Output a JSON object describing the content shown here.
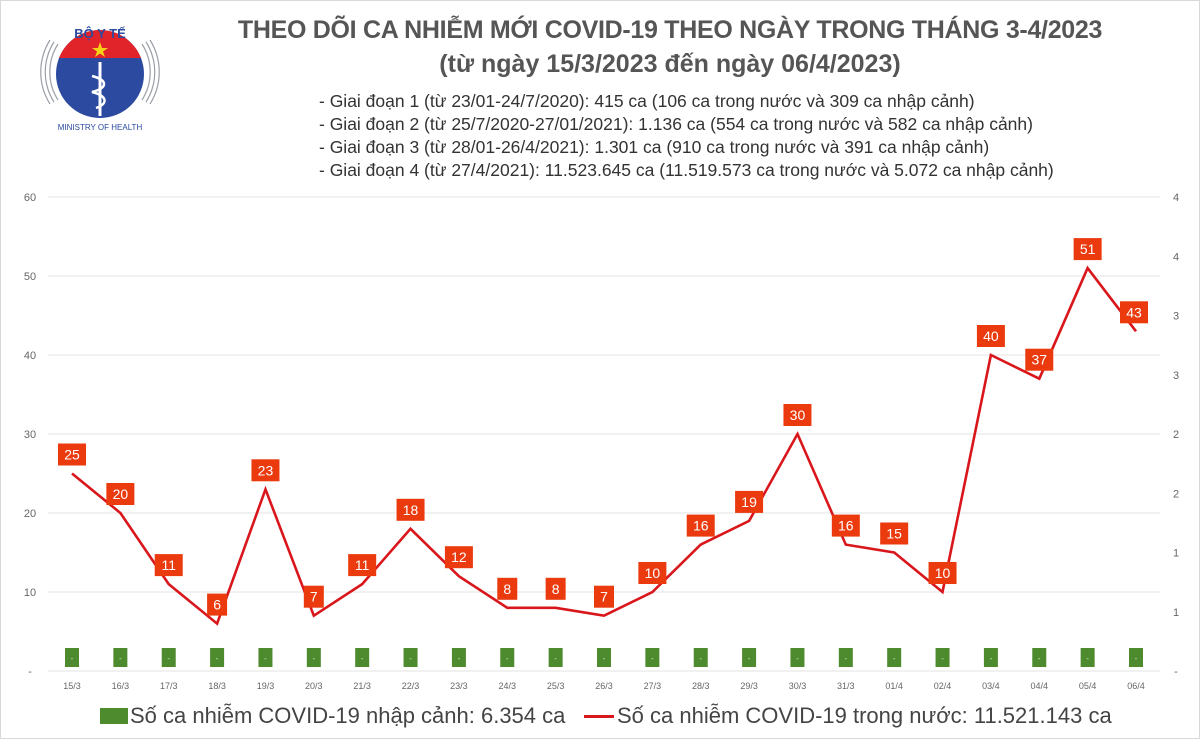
{
  "header": {
    "logo_text_top": "BỘ Y TẾ",
    "logo_text_bottom": "MINISTRY OF HEALTH",
    "title": "THEO DÕI CA NHIỄM MỚI COVID-19 THEO NGÀY TRONG THÁNG 3-4/2023",
    "subtitle": "(từ ngày 15/3/2023 đến ngày 06/4/2023)",
    "phases": [
      "- Giai đoạn 1 (từ 23/01-24/7/2020): 415 ca (106 ca trong nước và 309 ca nhập cảnh)",
      "- Giai đoạn 2 (từ 25/7/2020-27/01/2021): 1.136 ca (554 ca trong nước và 582 ca nhập cảnh)",
      "- Giai đoạn 3 (từ 28/01-26/4/2021): 1.301 ca (910 ca trong nước và 391 ca nhập cảnh)",
      "- Giai đoạn 4 (từ 27/4/2021): 11.523.645 ca (11.519.573 ca trong nước và 5.072 ca nhập cảnh)"
    ]
  },
  "colors": {
    "line": "#D9161B",
    "label_bg": "#EA3A0E",
    "bar": "#4E8A2E",
    "grid": "#E3E3E3",
    "tick_text": "#666666"
  },
  "chart_data": {
    "type": "line",
    "title": "THEO DÕI CA NHIỄM MỚI COVID-19 THEO NGÀY TRONG THÁNG 3-4/2023",
    "categories": [
      "15/3",
      "16/3",
      "17/3",
      "18/3",
      "19/3",
      "20/3",
      "21/3",
      "22/3",
      "23/3",
      "24/3",
      "25/3",
      "26/3",
      "27/3",
      "28/3",
      "29/3",
      "30/3",
      "31/3",
      "01/4",
      "02/4",
      "03/4",
      "04/4",
      "05/4",
      "06/4"
    ],
    "series": [
      {
        "name": "Số ca nhiễm COVID-19 trong nước: 11.521.143 ca",
        "type": "line",
        "axis": "left",
        "values": [
          25,
          20,
          11,
          6,
          23,
          7,
          11,
          18,
          12,
          8,
          8,
          7,
          10,
          16,
          19,
          30,
          16,
          15,
          10,
          40,
          37,
          51,
          43
        ],
        "data_labels": [
          "25",
          "20",
          "11",
          "6",
          "23",
          "7",
          "11",
          "18",
          "12",
          "8",
          "8",
          "7",
          "10",
          "16",
          "19",
          "30",
          "16",
          "15",
          "10",
          "40",
          "37",
          "51",
          "43"
        ]
      },
      {
        "name": "Số ca nhiễm COVID-19 nhập cảnh: 6.354 ca",
        "type": "bar",
        "axis": "right",
        "values": [
          0,
          0,
          0,
          0,
          0,
          0,
          0,
          0,
          0,
          0,
          0,
          0,
          0,
          0,
          0,
          0,
          0,
          0,
          0,
          0,
          0,
          0,
          0
        ],
        "data_labels": [
          "-",
          "-",
          "-",
          "-",
          "-",
          "-",
          "-",
          "-",
          "-",
          "-",
          "-",
          "-",
          "-",
          "-",
          "-",
          "-",
          "-",
          "-",
          "-",
          "-",
          "-",
          "-",
          "-"
        ]
      }
    ],
    "y_left": {
      "ylim": [
        0,
        60
      ],
      "ticks": [
        0,
        10,
        20,
        30,
        40,
        50,
        60
      ],
      "tick_labels": [
        "-",
        "10",
        "20",
        "30",
        "40",
        "50",
        "60"
      ]
    },
    "y_right": {
      "tick_labels": [
        "-",
        "1",
        "1",
        "2",
        "2",
        "3",
        "3",
        "4",
        "4"
      ]
    },
    "grid": true,
    "legend_position": "bottom",
    "legend": {
      "imported": "Số ca nhiễm COVID-19 nhập cảnh: 6.354 ca",
      "domestic": "Số ca nhiễm COVID-19 trong nước: 11.521.143 ca"
    }
  }
}
